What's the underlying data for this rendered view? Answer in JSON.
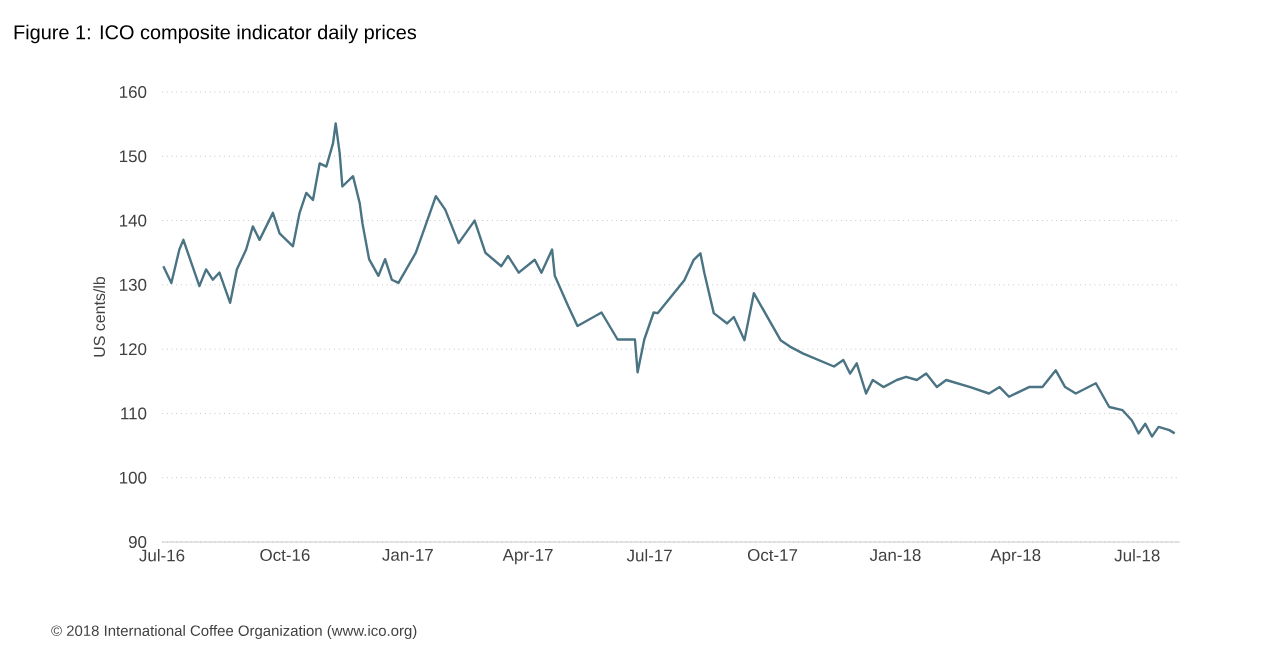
{
  "chart_data": {
    "type": "line",
    "title": "Figure 1: ICO composite indicator daily prices",
    "ylabel": "US cents/lb",
    "annotations": [
      "© 2018 International Coffee Organization (www.ico.org)"
    ],
    "grid": "y",
    "color": "#4a7384",
    "xlim": [
      "2016-07-01",
      "2018-08-02"
    ],
    "xticks": [
      {
        "value": "2016-07-01",
        "label": "Jul-16"
      },
      {
        "value": "2016-10-01",
        "label": "Oct-16"
      },
      {
        "value": "2017-01-01",
        "label": "Jan-17"
      },
      {
        "value": "2017-04-01",
        "label": "Apr-17"
      },
      {
        "value": "2017-07-01",
        "label": "Jul-17"
      },
      {
        "value": "2017-10-01",
        "label": "Oct-17"
      },
      {
        "value": "2018-01-01",
        "label": "Jan-18"
      },
      {
        "value": "2018-04-01",
        "label": "Apr-18"
      },
      {
        "value": "2018-07-01",
        "label": "Jul-18"
      }
    ],
    "ylim": [
      90,
      160
    ],
    "yticks": [
      90,
      100,
      110,
      120,
      130,
      140,
      150,
      160
    ],
    "x": [
      "2016-07-02",
      "2016-07-08",
      "2016-07-14",
      "2016-07-17",
      "2016-07-22",
      "2016-07-29",
      "2016-08-03",
      "2016-08-08",
      "2016-08-13",
      "2016-08-21",
      "2016-08-26",
      "2016-09-02",
      "2016-09-07",
      "2016-09-12",
      "2016-09-22",
      "2016-09-27",
      "2016-10-07",
      "2016-10-12",
      "2016-10-17",
      "2016-10-22",
      "2016-10-27",
      "2016-11-01",
      "2016-11-06",
      "2016-11-08",
      "2016-11-11",
      "2016-11-13",
      "2016-11-21",
      "2016-11-26",
      "2016-11-28",
      "2016-12-03",
      "2016-12-10",
      "2016-12-15",
      "2016-12-20",
      "2016-12-25",
      "2017-01-07",
      "2017-01-14",
      "2017-01-22",
      "2017-01-29",
      "2017-02-03",
      "2017-02-08",
      "2017-02-20",
      "2017-02-28",
      "2017-03-12",
      "2017-03-17",
      "2017-03-25",
      "2017-04-06",
      "2017-04-11",
      "2017-04-19",
      "2017-04-21",
      "2017-05-01",
      "2017-05-08",
      "2017-05-26",
      "2017-06-07",
      "2017-06-20",
      "2017-06-22",
      "2017-06-27",
      "2017-07-04",
      "2017-07-07",
      "2017-07-27",
      "2017-08-03",
      "2017-08-08",
      "2017-08-11",
      "2017-08-18",
      "2017-08-28",
      "2017-09-02",
      "2017-09-10",
      "2017-09-17",
      "2017-10-07",
      "2017-10-14",
      "2017-10-24",
      "2017-11-16",
      "2017-11-23",
      "2017-11-28",
      "2017-12-03",
      "2017-12-10",
      "2017-12-15",
      "2017-12-23",
      "2018-01-02",
      "2018-01-09",
      "2018-01-17",
      "2018-01-24",
      "2018-02-01",
      "2018-02-08",
      "2018-02-26",
      "2018-03-12",
      "2018-03-20",
      "2018-03-27",
      "2018-04-11",
      "2018-04-21",
      "2018-05-01",
      "2018-05-08",
      "2018-05-16",
      "2018-05-31",
      "2018-06-10",
      "2018-06-20",
      "2018-06-27",
      "2018-07-02",
      "2018-07-07",
      "2018-07-12",
      "2018-07-17",
      "2018-07-25",
      "2018-07-29"
    ],
    "values": [
      132.9,
      130.3,
      135.5,
      137,
      134,
      129.8,
      132.4,
      130.8,
      131.9,
      127.2,
      132.4,
      135.5,
      139.1,
      137,
      141.2,
      138,
      136,
      141.2,
      144.3,
      143.2,
      148.9,
      148.4,
      152,
      155.1,
      150.5,
      145.3,
      146.9,
      142.7,
      139.6,
      134,
      131.4,
      134,
      130.8,
      130.3,
      135,
      139.1,
      143.8,
      141.7,
      139.1,
      136.5,
      140,
      135,
      132.9,
      134.5,
      131.9,
      133.9,
      131.9,
      135.5,
      131.4,
      126.7,
      123.6,
      125.7,
      121.5,
      121.5,
      116.4,
      121.5,
      125.7,
      125.6,
      130.7,
      133.9,
      134.9,
      131.8,
      125.6,
      124,
      125,
      121.4,
      128.7,
      121.4,
      120.4,
      119.3,
      117.3,
      118.3,
      116.2,
      117.8,
      113.1,
      115.2,
      114.1,
      115.2,
      115.7,
      115.2,
      116.2,
      114.1,
      115.2,
      114.1,
      113.1,
      114.1,
      112.6,
      114.1,
      114.1,
      116.7,
      114.1,
      113.1,
      114.7,
      111,
      110.5,
      108.9,
      106.9,
      108.4,
      106.4,
      107.9,
      107.4,
      106.9
    ]
  }
}
